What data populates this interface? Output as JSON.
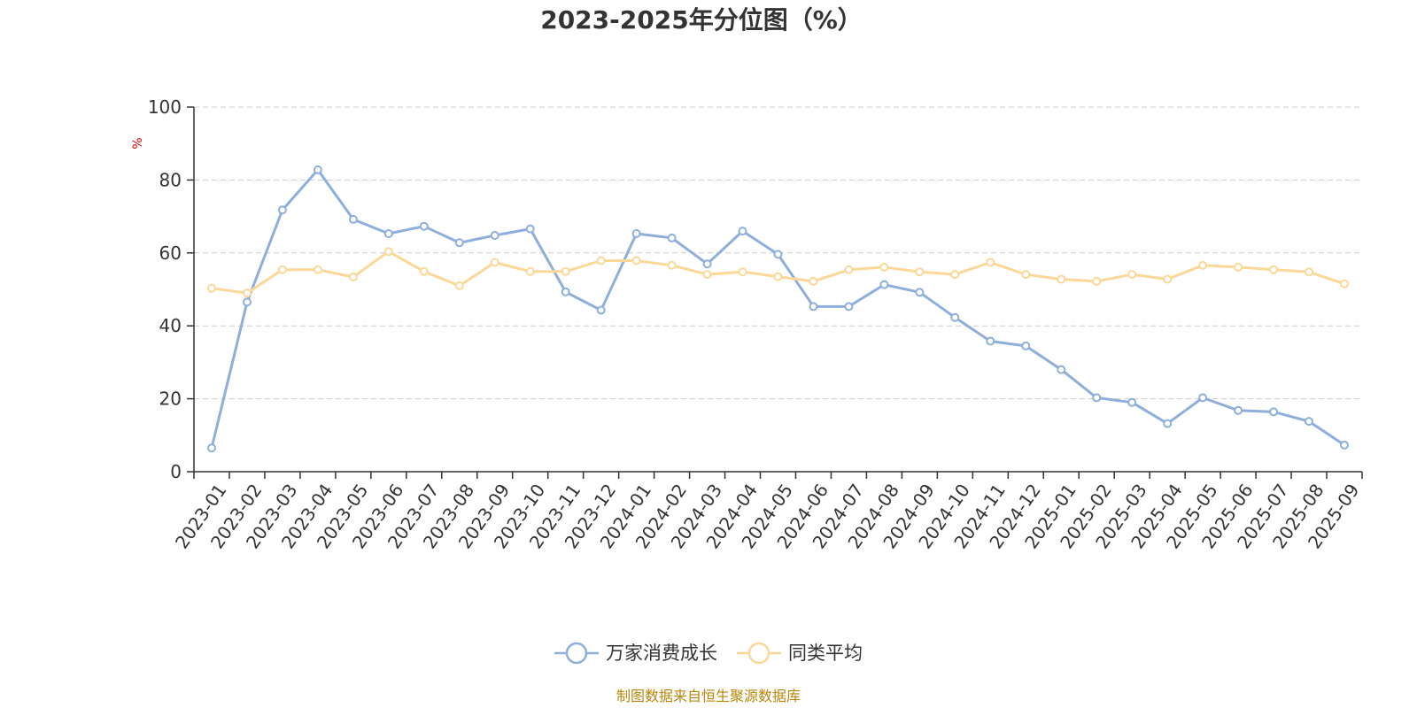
{
  "chart_data": {
    "type": "line",
    "title": "2023-2025年分位图（%）",
    "ylabel": "%",
    "ylim": [
      0,
      100
    ],
    "yticks": [
      "0",
      "20",
      "40",
      "60",
      "80",
      "100"
    ],
    "grid": true,
    "legend_position": "bottom-center",
    "categories": [
      "2023-01",
      "2023-02",
      "2023-03",
      "2023-04",
      "2023-05",
      "2023-06",
      "2023-07",
      "2023-08",
      "2023-09",
      "2023-10",
      "2023-11",
      "2023-12",
      "2024-01",
      "2024-02",
      "2024-03",
      "2024-04",
      "2024-05",
      "2024-06",
      "2024-07",
      "2024-08",
      "2024-09",
      "2024-10",
      "2024-11",
      "2024-12",
      "2025-01",
      "2025-02",
      "2025-03",
      "2025-04",
      "2025-05",
      "2025-06",
      "2025-07",
      "2025-08",
      "2025-09"
    ],
    "series": [
      {
        "name": "万家消费成长",
        "color": "#8eaedb",
        "values": [
          6.5,
          46.5,
          71.8,
          82.8,
          69.2,
          65.3,
          67.3,
          62.8,
          64.8,
          66.6,
          49.3,
          44.3,
          65.3,
          64.1,
          57.0,
          66.0,
          59.6,
          45.3,
          45.3,
          51.3,
          49.2,
          42.3,
          35.8,
          34.5,
          28.0,
          20.3,
          19.0,
          13.2,
          20.3,
          16.8,
          16.4,
          13.8,
          7.3
        ]
      },
      {
        "name": "同类平均",
        "color": "#fcd898",
        "values": [
          50.3,
          49.0,
          55.4,
          55.4,
          53.4,
          60.4,
          54.9,
          51.0,
          57.4,
          54.9,
          54.9,
          57.9,
          57.9,
          56.6,
          54.1,
          54.8,
          53.5,
          52.2,
          55.4,
          56.1,
          54.8,
          54.1,
          57.4,
          54.1,
          52.8,
          52.2,
          54.1,
          52.8,
          56.6,
          56.1,
          55.4,
          54.8,
          51.5
        ]
      }
    ],
    "source": "制图数据来自恒生聚源数据库"
  }
}
